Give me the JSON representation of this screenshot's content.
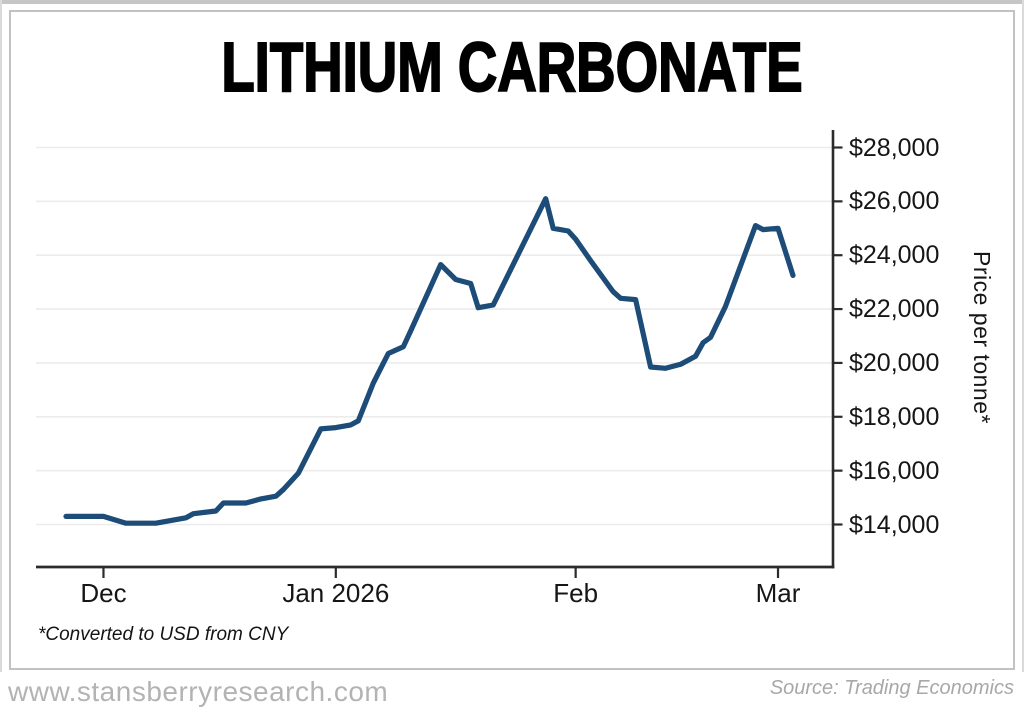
{
  "title": "LITHIUM CARBONATE",
  "footnote": "*Converted to USD from CNY",
  "footer": {
    "website": "www.stansberryresearch.com",
    "source": "Source: Trading Economics"
  },
  "chart_data": {
    "type": "line",
    "title": "LITHIUM CARBONATE",
    "ylabel": "Price per tonne*",
    "xlabel": "",
    "ylim": [
      14000,
      28000
    ],
    "grid": true,
    "legend_position": "none",
    "line_color": "#1c4c77",
    "axis_color": "#2b2b2b",
    "gridline_color": "#ececec",
    "y_ticks": [
      {
        "v": 28000,
        "label": "$28,000"
      },
      {
        "v": 26000,
        "label": "$26,000"
      },
      {
        "v": 24000,
        "label": "$24,000"
      },
      {
        "v": 22000,
        "label": "$22,000"
      },
      {
        "v": 20000,
        "label": "$20,000"
      },
      {
        "v": 18000,
        "label": "$18,000"
      },
      {
        "v": 16000,
        "label": "$16,000"
      },
      {
        "v": 14000,
        "label": "$14,000"
      }
    ],
    "x_ticks": [
      {
        "d": 5,
        "label": "Dec"
      },
      {
        "d": 36,
        "label": "Jan 2026"
      },
      {
        "d": 68,
        "label": "Feb"
      },
      {
        "d": 95,
        "label": "Mar"
      }
    ],
    "series": [
      {
        "name": "Lithium Carbonate",
        "units": "USD per tonne",
        "points": [
          {
            "d": 0,
            "date": "Nov 26",
            "v": 14300
          },
          {
            "d": 5,
            "date": "Dec 1",
            "v": 14300
          },
          {
            "d": 8,
            "date": "Dec 4",
            "v": 14050
          },
          {
            "d": 12,
            "date": "Dec 8",
            "v": 14050
          },
          {
            "d": 16,
            "date": "Dec 12",
            "v": 14250
          },
          {
            "d": 17,
            "date": "Dec 13",
            "v": 14400
          },
          {
            "d": 20,
            "date": "Dec 16",
            "v": 14500
          },
          {
            "d": 21,
            "date": "Dec 17",
            "v": 14800
          },
          {
            "d": 24,
            "date": "Dec 20",
            "v": 14800
          },
          {
            "d": 26,
            "date": "Dec 22",
            "v": 14950
          },
          {
            "d": 28,
            "date": "Dec 24",
            "v": 15050
          },
          {
            "d": 29,
            "date": "Dec 25",
            "v": 15300
          },
          {
            "d": 31,
            "date": "Dec 27",
            "v": 15900
          },
          {
            "d": 34,
            "date": "Dec 30",
            "v": 17550
          },
          {
            "d": 36,
            "date": "Jan 1",
            "v": 17600
          },
          {
            "d": 38,
            "date": "Jan 3",
            "v": 17700
          },
          {
            "d": 39,
            "date": "Jan 4",
            "v": 17850
          },
          {
            "d": 41,
            "date": "Jan 6",
            "v": 19250
          },
          {
            "d": 43,
            "date": "Jan 8",
            "v": 20350
          },
          {
            "d": 45,
            "date": "Jan 10",
            "v": 20600
          },
          {
            "d": 46,
            "date": "Jan 11",
            "v": 21200
          },
          {
            "d": 50,
            "date": "Jan 15",
            "v": 23650
          },
          {
            "d": 52,
            "date": "Jan 17",
            "v": 23100
          },
          {
            "d": 54,
            "date": "Jan 19",
            "v": 22950
          },
          {
            "d": 55,
            "date": "Jan 20",
            "v": 22050
          },
          {
            "d": 57,
            "date": "Jan 22",
            "v": 22150
          },
          {
            "d": 64,
            "date": "Jan 29",
            "v": 26100
          },
          {
            "d": 65,
            "date": "Jan 30",
            "v": 25000
          },
          {
            "d": 67,
            "date": "Feb 1",
            "v": 24900
          },
          {
            "d": 68,
            "date": "Feb 2",
            "v": 24600
          },
          {
            "d": 70,
            "date": "Feb 4",
            "v": 23800
          },
          {
            "d": 73,
            "date": "Feb 7",
            "v": 22650
          },
          {
            "d": 74,
            "date": "Feb 8",
            "v": 22400
          },
          {
            "d": 76,
            "date": "Feb 10",
            "v": 22350
          },
          {
            "d": 78,
            "date": "Feb 12",
            "v": 19850
          },
          {
            "d": 80,
            "date": "Feb 14",
            "v": 19800
          },
          {
            "d": 82,
            "date": "Feb 16",
            "v": 19950
          },
          {
            "d": 84,
            "date": "Feb 18",
            "v": 20250
          },
          {
            "d": 85,
            "date": "Feb 19",
            "v": 20750
          },
          {
            "d": 86,
            "date": "Feb 20",
            "v": 20950
          },
          {
            "d": 88,
            "date": "Feb 22",
            "v": 22100
          },
          {
            "d": 92,
            "date": "Feb 26",
            "v": 25100
          },
          {
            "d": 93,
            "date": "Feb 27",
            "v": 24950
          },
          {
            "d": 95,
            "date": "Mar 1",
            "v": 25000
          },
          {
            "d": 97,
            "date": "Mar 3",
            "v": 23250
          }
        ]
      }
    ]
  }
}
